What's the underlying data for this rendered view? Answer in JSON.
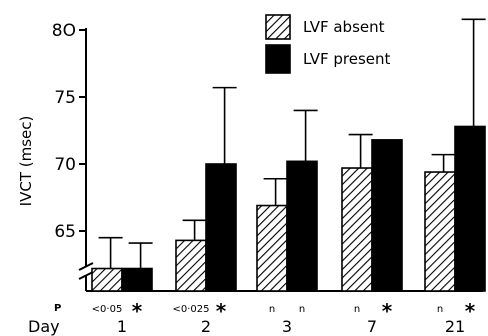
{
  "chart_data": {
    "type": "bar",
    "title": "",
    "ylabel": "IVCT (msec)",
    "ylim": [
      60,
      80
    ],
    "yticks": [
      65,
      70,
      75,
      80
    ],
    "ytick_labels": [
      "65",
      "70",
      "75",
      "8O"
    ],
    "axis_break": true,
    "legend_position": "top-right",
    "categories": [
      "1",
      "2",
      "3",
      "7",
      "21"
    ],
    "series": [
      {
        "name": "LVF absent",
        "pattern": "hatched",
        "values": [
          62.2,
          64.3,
          66.9,
          69.7,
          69.4
        ],
        "error": [
          2.3,
          1.5,
          2.0,
          2.5,
          1.3
        ]
      },
      {
        "name": "LVF present",
        "pattern": "solid",
        "values": [
          62.2,
          70.0,
          70.2,
          71.8,
          72.8
        ],
        "error": [
          1.9,
          5.7,
          3.8,
          0,
          8.0
        ]
      }
    ],
    "p_row_label": "P",
    "p_values": [
      "<0·05",
      "<0·025",
      "n",
      "n",
      "n"
    ],
    "p_values_right": [
      "",
      "",
      "n",
      "",
      ""
    ],
    "significance_marker": "*",
    "significant": [
      true,
      true,
      false,
      true,
      true
    ],
    "day_row_label": "Day",
    "colors": {
      "ink": "#000000",
      "hatch_bg": "#ffffff"
    }
  }
}
